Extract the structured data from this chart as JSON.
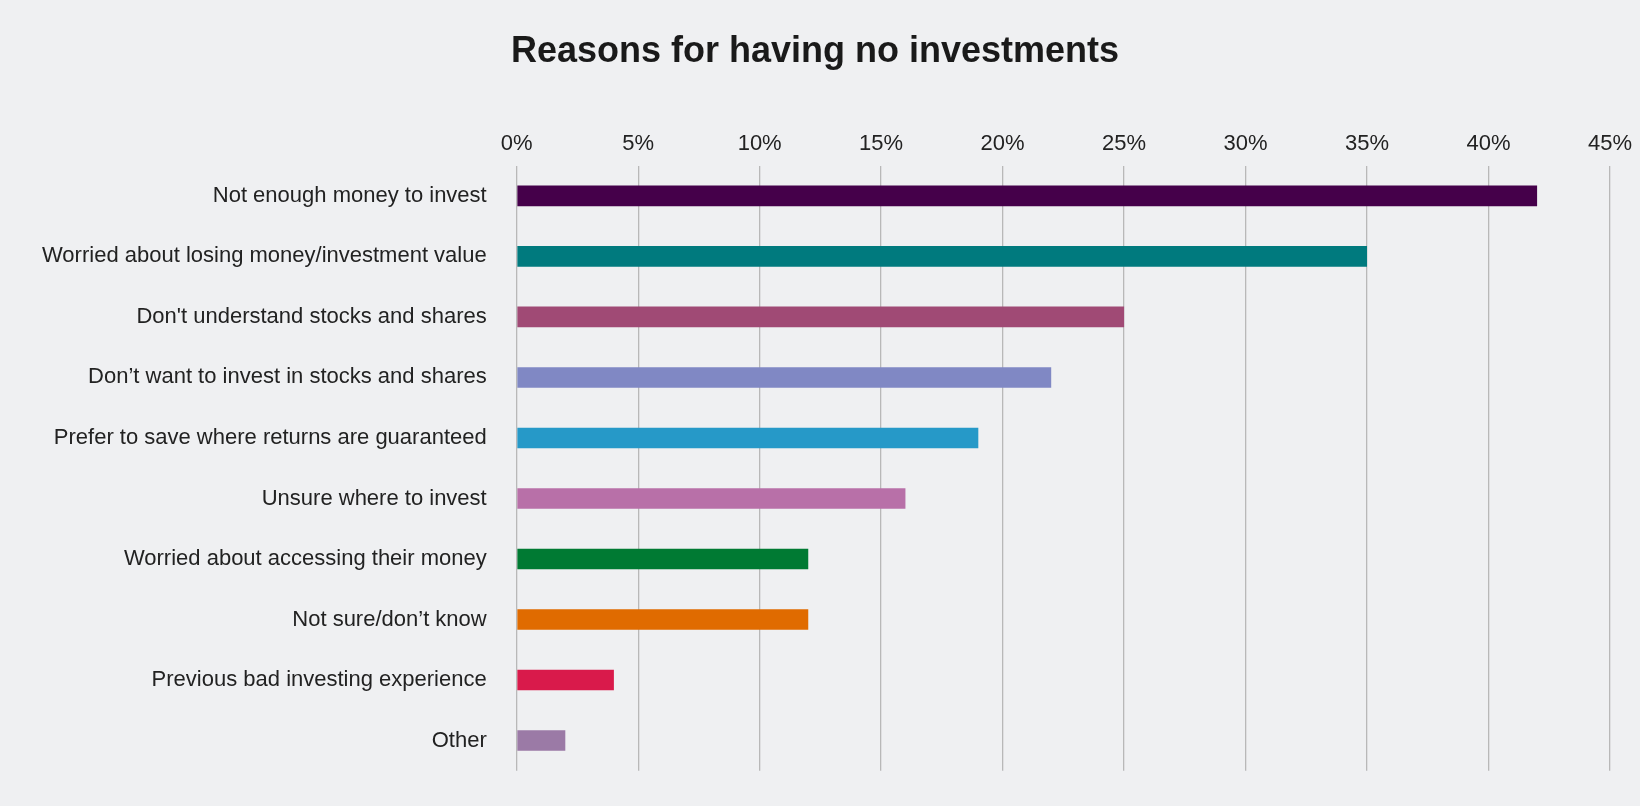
{
  "chart_data": {
    "type": "bar",
    "orientation": "horizontal",
    "title": "Reasons for having no investments",
    "categories": [
      "Not enough money to invest",
      "Worried about losing money/investment value",
      "Don't understand stocks and shares",
      "Don’t want to invest in stocks and shares",
      "Prefer to save where returns are guaranteed",
      "Unsure where to invest",
      "Worried about accessing their money",
      "Not sure/don’t know",
      "Previous bad investing experience",
      "Other"
    ],
    "values": [
      42,
      35,
      25,
      22,
      19,
      16,
      12,
      12,
      4,
      2
    ],
    "colors": [
      "#45004a",
      "#007a7e",
      "#a04a75",
      "#8088c4",
      "#2699c8",
      "#b870a8",
      "#007a33",
      "#e06b00",
      "#d91a4b",
      "#9b7aa6"
    ],
    "xlim": [
      0,
      45
    ],
    "xticks": [
      {
        "value": 0,
        "label": "0%"
      },
      {
        "value": 5,
        "label": "5%"
      },
      {
        "value": 10,
        "label": "10%"
      },
      {
        "value": 15,
        "label": "15%"
      },
      {
        "value": 20,
        "label": "20%"
      },
      {
        "value": 25,
        "label": "25%"
      },
      {
        "value": 30,
        "label": "30%"
      },
      {
        "value": 35,
        "label": "35%"
      },
      {
        "value": 40,
        "label": "40%"
      },
      {
        "value": 45,
        "label": "45%"
      }
    ],
    "grid": "x",
    "legend": false
  }
}
